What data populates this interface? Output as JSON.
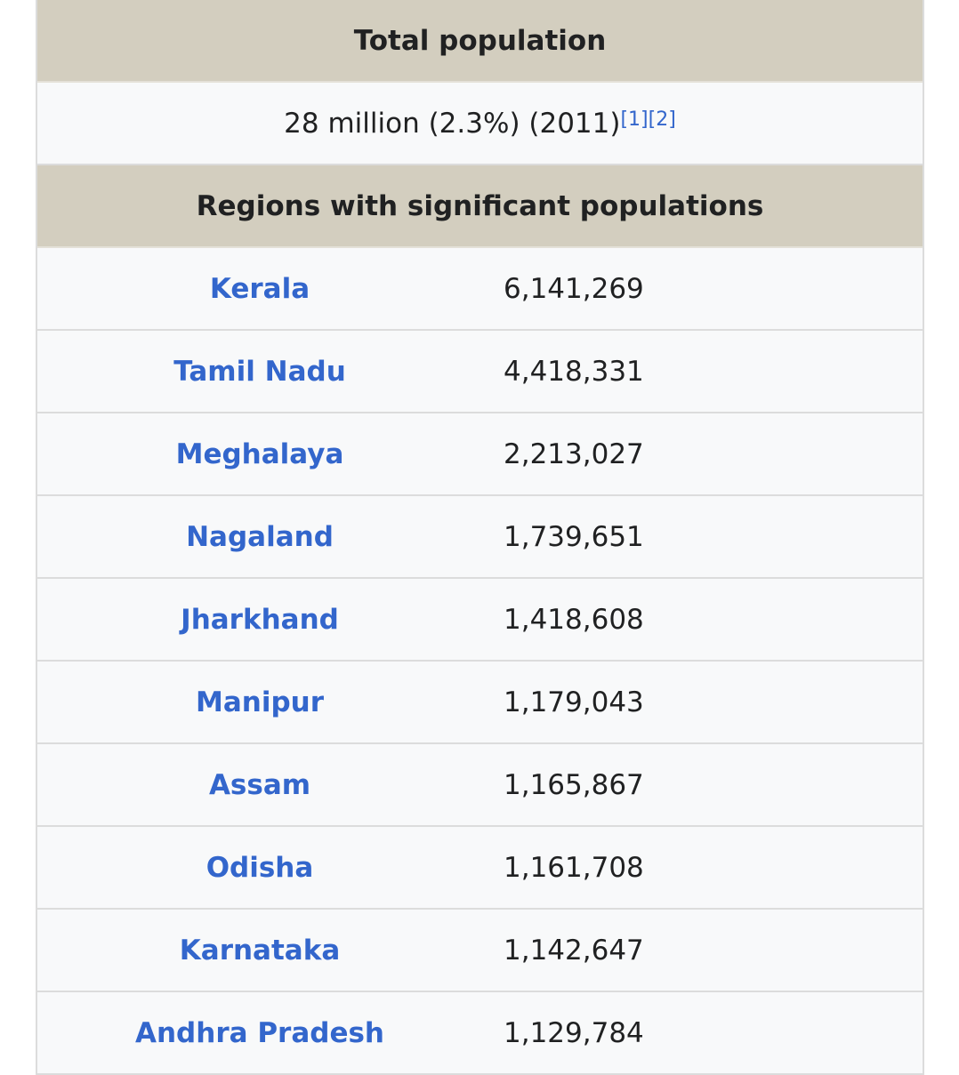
{
  "infobox": {
    "header": "Total population",
    "total": {
      "text": "28 million (2.3%) (2011)",
      "refs": [
        "[1]",
        "[2]"
      ]
    },
    "section": "Regions with significant populations",
    "rows": [
      [
        "Kerala",
        "6,141,269"
      ],
      [
        "Tamil Nadu",
        "4,418,331"
      ],
      [
        "Meghalaya",
        "2,213,027"
      ],
      [
        "Nagaland",
        "1,739,651"
      ],
      [
        "Jharkhand",
        "1,418,608"
      ],
      [
        "Manipur",
        "1,179,043"
      ],
      [
        "Assam",
        "1,165,867"
      ],
      [
        "Odisha",
        "1,161,708"
      ],
      [
        "Karnataka",
        "1,142,647"
      ],
      [
        "Andhra Pradesh",
        "1,129,784"
      ]
    ]
  }
}
